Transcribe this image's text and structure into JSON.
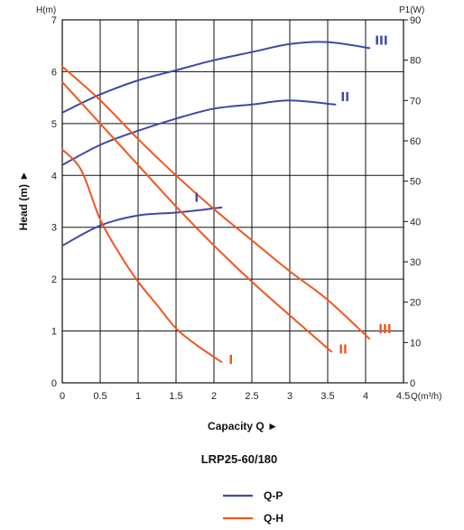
{
  "chart_data": {
    "type": "line",
    "title": "LRP25-60/180",
    "xlabel": "Capacity Q ►",
    "ylabel": "Head (m) ►",
    "x_unit": "Q(m³/h)",
    "y_left_unit": "H(m)",
    "y_right_unit": "P1(W)",
    "xlim": [
      0,
      4.5
    ],
    "ylim_left": [
      0,
      7
    ],
    "ylim_right": [
      0,
      90
    ],
    "x_ticks": [
      "0",
      "0.5",
      "1",
      "1.5",
      "2",
      "2.5",
      "3",
      "3.5",
      "4",
      "4.5"
    ],
    "y_left_ticks": [
      "0",
      "1",
      "2",
      "3",
      "4",
      "5",
      "6",
      "7"
    ],
    "y_right_ticks": [
      "0",
      "10",
      "20",
      "30",
      "40",
      "50",
      "60",
      "70",
      "80",
      "90"
    ],
    "grid": true,
    "legend_position": "bottom-center",
    "legend": [
      {
        "name": "Q-P",
        "color": "#3f48a8"
      },
      {
        "name": "Q-H",
        "color": "#f0561e"
      }
    ],
    "series": [
      {
        "name": "Q-P I",
        "label": "I",
        "group": "Q-P",
        "axis": "right",
        "color": "#3f48a8",
        "x": [
          0,
          0.5,
          1,
          1.5,
          1.8,
          2.1
        ],
        "y": [
          34,
          39,
          41.5,
          42.2,
          42.8,
          43.5
        ]
      },
      {
        "name": "Q-P II",
        "label": "II",
        "group": "Q-P",
        "axis": "right",
        "color": "#3f48a8",
        "x": [
          0,
          0.5,
          1,
          1.5,
          2,
          2.5,
          3,
          3.6
        ],
        "y": [
          54,
          59,
          62.5,
          65.5,
          68,
          69,
          70,
          69
        ]
      },
      {
        "name": "Q-P III",
        "label": "III",
        "group": "Q-P",
        "axis": "right",
        "color": "#3f48a8",
        "x": [
          0,
          0.5,
          1,
          1.5,
          2,
          2.5,
          3,
          3.5,
          4.05
        ],
        "y": [
          67,
          71.5,
          75,
          77.5,
          80,
          82,
          84,
          84.5,
          83
        ]
      },
      {
        "name": "Q-H I",
        "label": "I",
        "group": "Q-H",
        "axis": "left",
        "color": "#f0561e",
        "x": [
          0,
          0.25,
          0.5,
          0.75,
          1,
          1.25,
          1.5,
          1.75,
          2.1
        ],
        "y": [
          4.5,
          4.1,
          3.15,
          2.5,
          1.95,
          1.5,
          1.05,
          0.75,
          0.4
        ]
      },
      {
        "name": "Q-H II",
        "label": "II",
        "group": "Q-H",
        "axis": "left",
        "color": "#f0561e",
        "x": [
          0,
          0.5,
          1,
          1.5,
          2,
          2.5,
          3,
          3.55
        ],
        "y": [
          5.8,
          5.0,
          4.2,
          3.4,
          2.65,
          1.95,
          1.3,
          0.6
        ]
      },
      {
        "name": "Q-H III",
        "label": "III",
        "group": "Q-H",
        "axis": "left",
        "color": "#f0561e",
        "x": [
          0,
          0.5,
          1,
          1.5,
          2,
          2.5,
          3,
          3.5,
          4.05
        ],
        "y": [
          6.1,
          5.45,
          4.7,
          4.0,
          3.35,
          2.75,
          2.15,
          1.6,
          0.85
        ]
      }
    ]
  }
}
